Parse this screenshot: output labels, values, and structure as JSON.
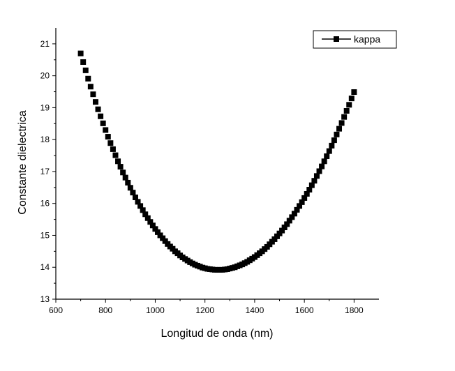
{
  "chart_data": {
    "type": "scatter",
    "title": "",
    "xlabel": "Longitud de onda (nm)",
    "ylabel": "Constante dielectrica",
    "xlim": [
      600,
      1900
    ],
    "ylim": [
      13,
      21.5
    ],
    "xticks": [
      600,
      800,
      1000,
      1200,
      1400,
      1600,
      1800
    ],
    "yticks": [
      13,
      14,
      15,
      16,
      17,
      18,
      19,
      20,
      21
    ],
    "grid": false,
    "legend_position": "top-right",
    "series": [
      {
        "name": "kappa",
        "marker": "square",
        "color": "#000000",
        "x": [
          700,
          710,
          720,
          730,
          740,
          750,
          760,
          770,
          780,
          790,
          800,
          810,
          820,
          830,
          840,
          850,
          860,
          870,
          880,
          890,
          900,
          910,
          920,
          930,
          940,
          950,
          960,
          970,
          980,
          990,
          1000,
          1010,
          1020,
          1030,
          1040,
          1050,
          1060,
          1070,
          1080,
          1090,
          1100,
          1110,
          1120,
          1130,
          1140,
          1150,
          1160,
          1170,
          1180,
          1190,
          1200,
          1210,
          1220,
          1230,
          1240,
          1250,
          1260,
          1270,
          1280,
          1290,
          1300,
          1310,
          1320,
          1330,
          1340,
          1350,
          1360,
          1370,
          1380,
          1390,
          1400,
          1410,
          1420,
          1430,
          1440,
          1450,
          1460,
          1470,
          1480,
          1490,
          1500,
          1510,
          1520,
          1530,
          1540,
          1550,
          1560,
          1570,
          1580,
          1590,
          1600,
          1610,
          1620,
          1630,
          1640,
          1650,
          1660,
          1670,
          1680,
          1690,
          1700,
          1710,
          1720,
          1730,
          1740,
          1750,
          1760,
          1770,
          1780,
          1790,
          1800
        ],
        "y": [
          20.7,
          20.43,
          20.17,
          19.91,
          19.66,
          19.42,
          19.18,
          18.95,
          18.73,
          18.51,
          18.3,
          18.09,
          17.89,
          17.7,
          17.51,
          17.32,
          17.15,
          16.97,
          16.81,
          16.65,
          16.49,
          16.34,
          16.19,
          16.05,
          15.92,
          15.79,
          15.66,
          15.54,
          15.42,
          15.31,
          15.2,
          15.1,
          15.0,
          14.91,
          14.82,
          14.73,
          14.65,
          14.58,
          14.5,
          14.44,
          14.37,
          14.31,
          14.26,
          14.21,
          14.16,
          14.12,
          14.08,
          14.05,
          14.02,
          13.99,
          13.97,
          13.95,
          13.94,
          13.93,
          13.92,
          13.92,
          13.92,
          13.92,
          13.93,
          13.94,
          13.96,
          13.98,
          14.0,
          14.03,
          14.06,
          14.09,
          14.13,
          14.17,
          14.22,
          14.27,
          14.32,
          14.38,
          14.44,
          14.5,
          14.57,
          14.64,
          14.72,
          14.8,
          14.88,
          14.97,
          15.06,
          15.15,
          15.25,
          15.35,
          15.46,
          15.57,
          15.68,
          15.8,
          15.92,
          16.04,
          16.17,
          16.3,
          16.43,
          16.57,
          16.71,
          16.86,
          17.01,
          17.16,
          17.32,
          17.48,
          17.64,
          17.81,
          17.98,
          18.16,
          18.34,
          18.52,
          18.71,
          18.9,
          19.09,
          19.29,
          19.49
        ]
      }
    ]
  }
}
